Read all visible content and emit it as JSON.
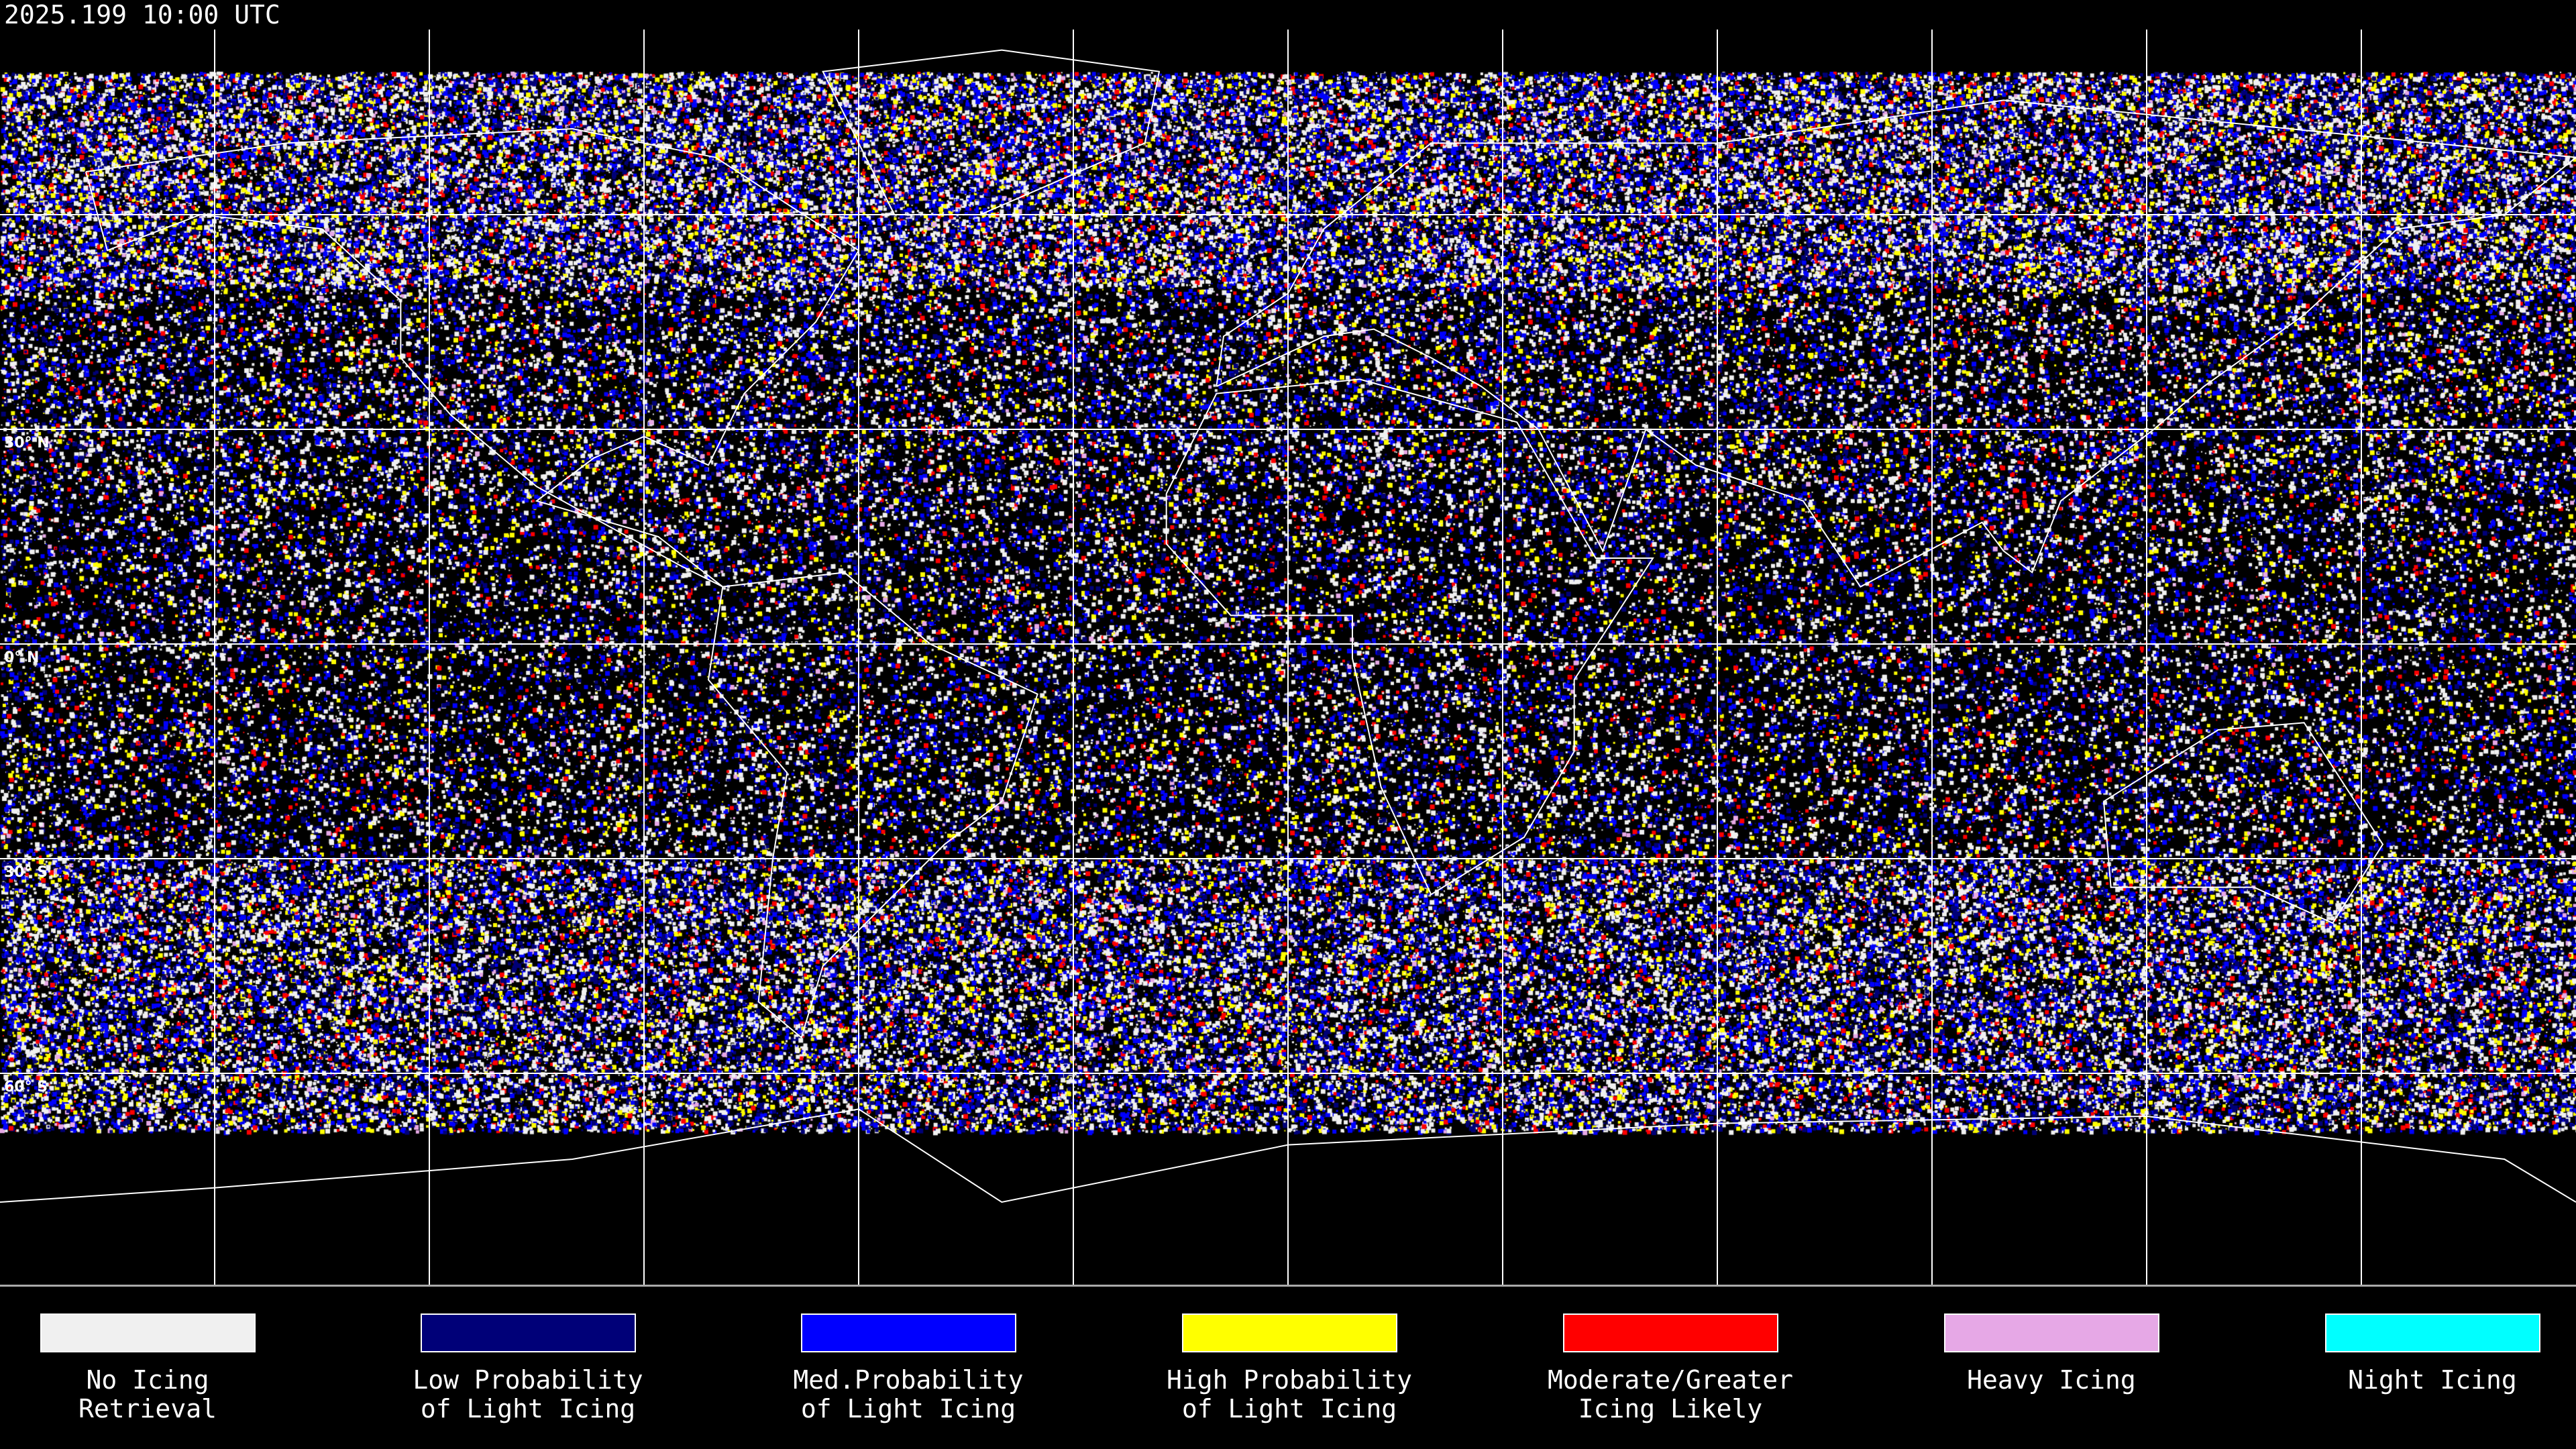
{
  "header": {
    "timestamp": "2025.199 10:00 UTC"
  },
  "map": {
    "projection": "equirectangular",
    "grid_spacing_degrees": 30,
    "grid_color": "#ffffff",
    "coastline_color": "#ffffff",
    "latitude_labels": [
      "30° N",
      "0° N",
      "30° S",
      "60° S"
    ]
  },
  "legend": [
    {
      "line1": "No Icing",
      "line2": "Retrieval",
      "color": "#f0f0f0"
    },
    {
      "line1": "Low Probability",
      "line2": "of Light Icing",
      "color": "#000078"
    },
    {
      "line1": "Med.Probability",
      "line2": "of Light Icing",
      "color": "#0000ff"
    },
    {
      "line1": "High Probability",
      "line2": "of Light Icing",
      "color": "#ffff00"
    },
    {
      "line1": "Moderate/Greater",
      "line2": "Icing Likely",
      "color": "#ff0000"
    },
    {
      "line1": "Heavy Icing",
      "line2": "",
      "color": "#e6a8e6"
    },
    {
      "line1": "Night Icing",
      "line2": "",
      "color": "#00ffff"
    }
  ]
}
